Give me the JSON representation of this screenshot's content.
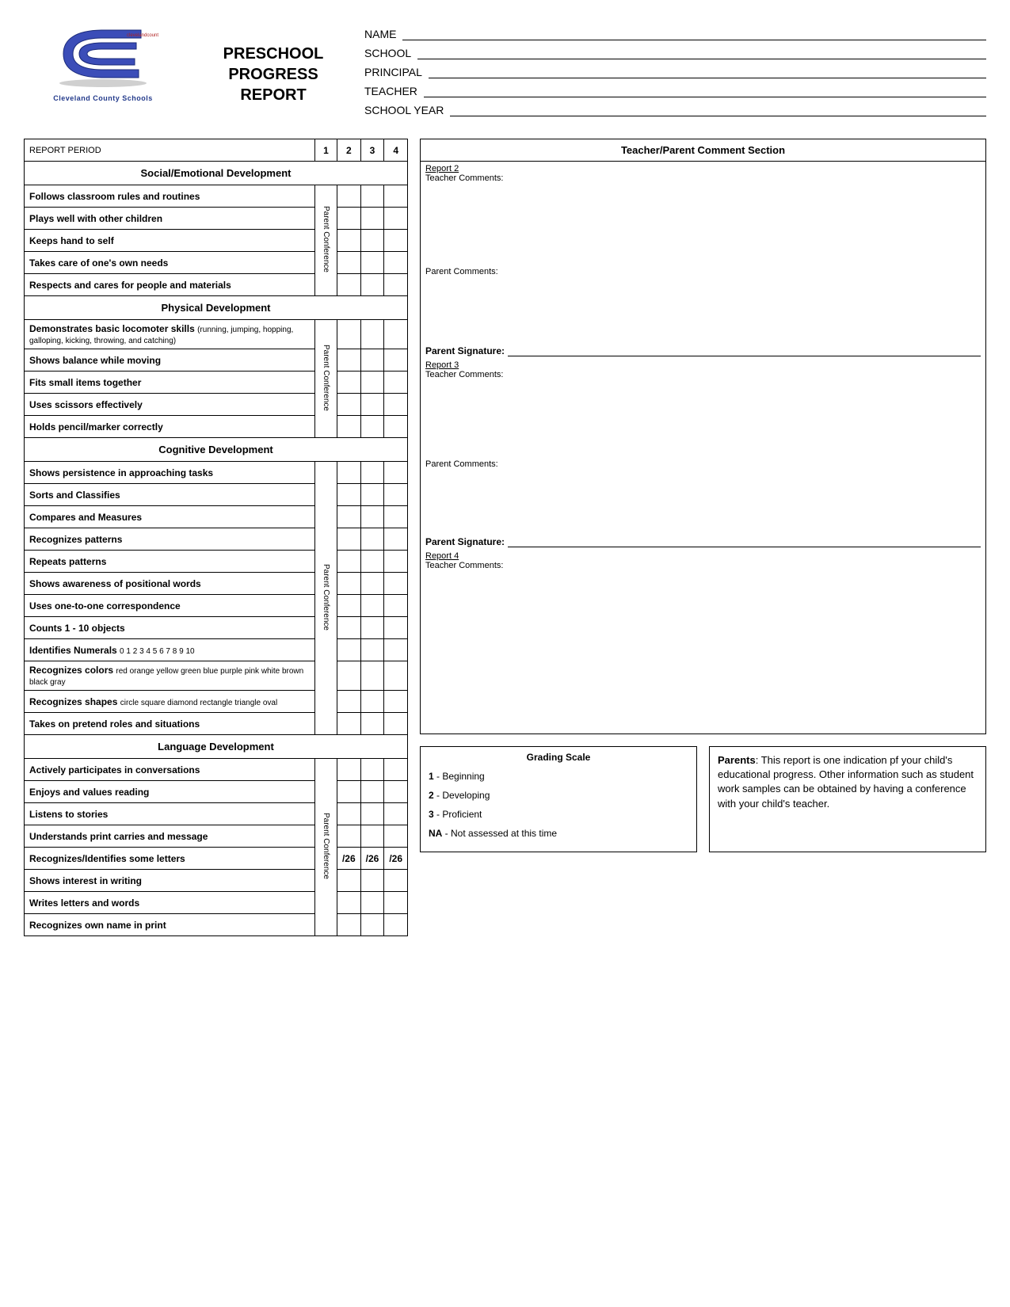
{
  "title": {
    "line1": "PRESCHOOL",
    "line2": "PROGRESS",
    "line3": "REPORT"
  },
  "logo": {
    "caption": "Cleveland County Schools",
    "url_text": "clevelandcountyschools.org"
  },
  "info_fields": [
    "NAME",
    "SCHOOL",
    "PRINCIPAL",
    "TEACHER",
    "SCHOOL YEAR"
  ],
  "report_period_label": "REPORT PERIOD",
  "period_numbers": [
    "1",
    "2",
    "3",
    "4"
  ],
  "conference_label": "Parent Conference",
  "sections": [
    {
      "title": "Social/Emotional Development",
      "skills": [
        {
          "main": "Follows classroom rules and routines"
        },
        {
          "main": "Plays well with other children"
        },
        {
          "main": "Keeps hand to self"
        },
        {
          "main": "Takes care of one's own needs"
        },
        {
          "main": "Respects and cares for people and materials"
        }
      ]
    },
    {
      "title": "Physical Development",
      "skills": [
        {
          "main": "Demonstrates basic locomoter skills",
          "sub": "(running, jumping, hopping, galloping, kicking, throwing, and catching)"
        },
        {
          "main": "Shows balance while moving"
        },
        {
          "main": "Fits small items together"
        },
        {
          "main": "Uses scissors effectively"
        },
        {
          "main": "Holds pencil/marker correctly"
        }
      ]
    },
    {
      "title": "Cognitive Development",
      "skills": [
        {
          "main": "Shows persistence in approaching tasks"
        },
        {
          "main": "Sorts and Classifies"
        },
        {
          "main": "Compares and Measures"
        },
        {
          "main": "Recognizes patterns"
        },
        {
          "main": "Repeats patterns"
        },
        {
          "main": "Shows awareness of positional words"
        },
        {
          "main": "Uses one-to-one correspondence"
        },
        {
          "main": "Counts 1 - 10 objects"
        },
        {
          "main": "Identifies Numerals",
          "sub": "0   1   2   3   4   5   6   7   8   9   10"
        },
        {
          "main": "Recognizes colors",
          "sub": "red  orange  yellow  green  blue  purple  pink  white  brown  black  gray"
        },
        {
          "main": "Recognizes shapes",
          "sub": "circle   square   diamond   rectangle   triangle   oval"
        },
        {
          "main": "Takes on pretend roles and situations"
        }
      ]
    },
    {
      "title": "Language Development",
      "skills": [
        {
          "main": "Actively participates in conversations"
        },
        {
          "main": "Enjoys and values reading"
        },
        {
          "main": "Listens to stories"
        },
        {
          "main": "Understands print carries and message"
        },
        {
          "main": "Recognizes/Identifies some letters",
          "marks": [
            "",
            "/26",
            "/26",
            "/26"
          ]
        },
        {
          "main": "Shows interest in writing"
        },
        {
          "main": "Writes letters and words"
        },
        {
          "main": "Recognizes own name in print"
        }
      ]
    }
  ],
  "comments": {
    "header": "Teacher/Parent Comment Section",
    "teacher_label": "Teacher Comments:",
    "parent_label": "Parent Comments:",
    "signature_label": "Parent Signature:",
    "reports": [
      "Report 2",
      "Report 3",
      "Report 4"
    ],
    "heights": {
      "r2_teacher": 130,
      "r2_parent": 100,
      "r3_teacher": 125,
      "r3_parent": 98,
      "r4_teacher": 233
    }
  },
  "grading_scale": {
    "title": "Grading Scale",
    "items": [
      {
        "code": "1",
        "label": "Beginning"
      },
      {
        "code": "2",
        "label": "Developing"
      },
      {
        "code": "3",
        "label": "Proficient"
      },
      {
        "code": "NA",
        "label": "Not assessed at this time"
      }
    ]
  },
  "parents_note": {
    "lead": "Parents",
    "text": ": This report is one indication pf your child's educational progress.  Other information such as student work samples can be obtained by having a conference with your child's teacher."
  }
}
